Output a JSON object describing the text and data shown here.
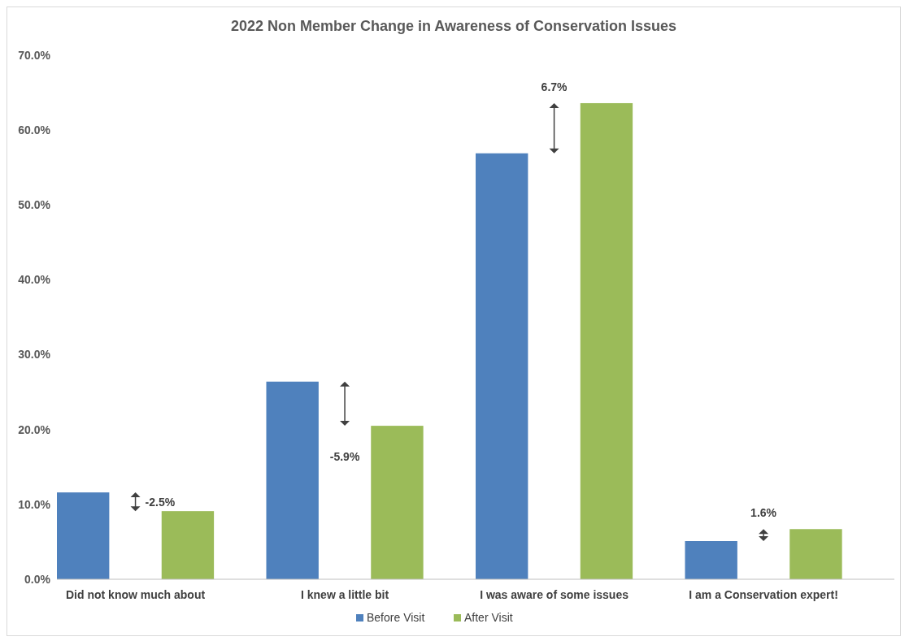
{
  "chart_data": {
    "type": "bar",
    "title": "2022 Non Member Change in Awareness of Conservation Issues",
    "categories": [
      "Did not know much about",
      "I knew a little bit",
      "I was aware of some issues",
      "I am a Conservation expert!"
    ],
    "series": [
      {
        "name": "Before Visit",
        "color": "#4f81bd",
        "values": [
          11.6,
          26.4,
          56.9,
          5.1
        ]
      },
      {
        "name": "After Visit",
        "color": "#9bbb59",
        "values": [
          9.1,
          20.5,
          63.6,
          6.7
        ]
      }
    ],
    "ylim": [
      0,
      70
    ],
    "yticks": [
      {
        "value": 0,
        "label": "0.0%"
      },
      {
        "value": 10,
        "label": "10.0%"
      },
      {
        "value": 20,
        "label": "20.0%"
      },
      {
        "value": 30,
        "label": "30.0%"
      },
      {
        "value": 40,
        "label": "40.0%"
      },
      {
        "value": 50,
        "label": "50.0%"
      },
      {
        "value": 60,
        "label": "60.0%"
      },
      {
        "value": 70,
        "label": "70.0%"
      }
    ],
    "grid": false,
    "legend": "bottom",
    "annotations": [
      "-2.5%",
      "-5.9%",
      "6.7%",
      "1.6%"
    ]
  }
}
